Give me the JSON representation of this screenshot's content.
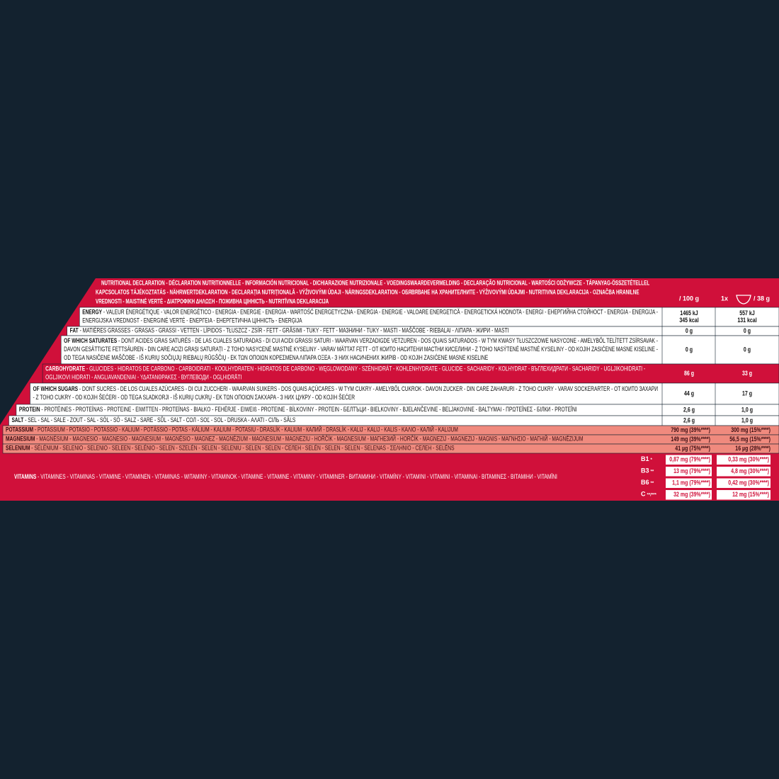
{
  "header": {
    "lines": [
      "NUTRITIONAL DECLARATION - DÉCLARATION NUTRITIONNELLE - INFORMACIÓN NUTRICIONAL - DICHIARAZIONE NUTRIZIONALE - VOEDINGSWAARDEVERMELDING - DECLARAÇÃO NUTRICIONAL - WARTOŚCI ODŻYWCZE - TÁPANYAG-ÖSSZETÉTELLEL",
      "KAPCSOLATOS TÁJÉKOZTATÁS - NÄHRWERTDEKLARATION - DECLARAȚIA NUTRIȚIONALĂ - VÝŽIVOVÝMI ÚDAJI - NÄRINGSDEKLARATION - ОБЯВЯВАНЕ НА ХРАНИТЕЛНИТЕ - VÝŽIVOVÝMI ÚDAJMI - NUTRITIVNA DEKLARACIJA - OZNAČBA HRANILNE",
      "VREDNOSTI - MAISTINĖ VERTĖ - ΔΙΑΤΡΟΦΙΚΗ ΔΗΛΩΣΗ - ПОЖИВНА ЦІННІСТЬ - NUTRITĪVNA DEKLARACIJA"
    ],
    "per100": "/ 100 g",
    "portion_count": "1x",
    "portion": "/ 38 g"
  },
  "rows": [
    {
      "background": "#ffffff",
      "text_color": "#111111",
      "name": "ENERGY",
      "lines": [
        "- VALEUR ÉNERGÉTIQUE - VALOR ENERGÉTICO - ENERGIA - ENERGIE - ENERGIA - WARTOŚĆ ENERGETYCZNA - ENERGIA - ENERGIE - VALOARE ENERGETICĂ - ENERGETICKÁ HODNOTA - ENERGI - ЕНЕРГИЙНА СТОЙНОСТ - ENERGIA - ENERGIJA -",
        "ENERGIJSKA VREDNOST - ENERGINĖ VERTĖ - ΕΝΕΡΓΕΙΑ - ЕНЕРГЕТИЧНА ЦІННІСТЬ - ENERĢIJA"
      ],
      "per100": [
        "1465 kJ",
        "345 kcal"
      ],
      "portion": [
        "557 kJ",
        "131 kcal"
      ]
    },
    {
      "background": "#ffffff",
      "text_color": "#111111",
      "name": "FAT",
      "lines": [
        "- MATIÈRES GRASSES - GRASAS - GRASSI - VETTEN - LÍPIDOS - TŁUSZCZ - ZSÍR - FETT - GRĂSIMI - TUKY - FETT - МАЗНИНИ - TUKY - MASTI - MAŠČOBE - RIEBALAI - ΛΙΠΑΡΑ - ЖИРИ - MASTI"
      ],
      "per100": [
        "0 g"
      ],
      "portion": [
        "0 g"
      ]
    },
    {
      "background": "#ffffff",
      "text_color": "#111111",
      "name": "OF WHICH SATURATES",
      "lines": [
        "- DONT ACIDES GRAS SATURÉS - DE LAS CUALES SATURADAS - DI CUI ACIDI GRASSI SATURI - WAARVAN VERZADIGDE VETZUREN - DOS QUAIS SATURADOS - W TYM KWASY TŁUSZCZOWE NASYCONE - AMELYBŐL TELÍTETT ZSÍRSAVAK -",
        "DAVON GESÄTTIGTE FETTSÄUREN - DIN CARE ACIZI GRAȘI SATURAȚI - Z TOHO NASYCENÉ MASTNÉ KYSELINY - VARAV MÄTTAT FETT - ОТ КОИТО НАСИТЕНИ МАСТНИ КИСЕЛИНИ - Z TOHO NASÝTENÉ MASTNÉ KYSELINY - OD KOJIH ZASIĆENE MASNE KISELINE -",
        "OD TEGA NASIČENE MAŠČOBE - IŠ KURIŲ SOČIŲJŲ RIEBALŲ RŪGŠČIŲ - ΕΚ ΤΩΝ ΟΠΟΙΩΝ ΚΟΡΕΣΜΕΝΑ ΛΙΠΑΡΑ ΟΞΕΑ - З НИХ НАСИЧЕНИХ ЖИРІВ - OD KOJIH ZASIĆENE MASNE KISELINE"
      ],
      "per100": [
        "0 g"
      ],
      "portion": [
        "0 g"
      ]
    },
    {
      "background": "#d0103a",
      "text_color": "#ffffff",
      "name": "CARBOHYDRATE",
      "lines": [
        "- GLUCIDES - HIDRATOS DE CARBONO - CARBOIDRATI - KOOLHYDRATEN - HIDRATOS DE CARBONO - WĘGLOWODANY - SZÉNHIDRÁT - KOHLENHYDRATE - GLUCIDE - SACHARIDY - KOLHYDRAT - ВЪГЛЕХИДРАТИ - SACHARIDY - UGLJIKOHIDRATI -",
        "OGLJIKOVI HIDRATI - ANGLIAVANDENIAI - ΥΔΑΤΑΝΘΡΑΚΕΣ - ВУГЛЕВОДИ - OGĻHIDRĀTI"
      ],
      "per100": [
        "86 g"
      ],
      "portion": [
        "33 g"
      ]
    },
    {
      "background": "#ffffff",
      "text_color": "#111111",
      "name": "OF WHICH SUGARS",
      "lines": [
        "- DONT SUCRES - DE LOS CUALES AZÚCARES - DI CUI ZUCCHERI - WAARVAN SUIKERS - DOS QUAIS AÇÚCARES - W TYM CUKRY - AMELYBŐL CUKROK - DAVON ZUCKER - DIN CARE ZAHARURI - Z TOHO CUKRY - VARAV SOCKERARTER - ОТ КОИТО ЗАХАРИ",
        "- Z TOHO CUKRY - OD KOJIH ŠEĆERI - OD TEGA SLADKORJI - IŠ KURIŲ CUKRŲ - ΕΚ ΤΩΝ ΟΠΟΙΩΝ ΣΑΚΧΑΡΑ - З НИХ ЦУКРУ - OD KOJIH ŠEĆER"
      ],
      "per100": [
        "44 g"
      ],
      "portion": [
        "17 g"
      ]
    },
    {
      "background": "#ffffff",
      "text_color": "#111111",
      "name": "PROTEIN",
      "lines": [
        "- PROTÉINES - PROTEÍNAS - PROTEINE - EIWITTEN - PROTEÍNAS - BIAŁKO - FEHÉRJE - EIWEIß - PROTEINE - BÍLKOVINY - PROTEIN - БЕЛТЪЦИ - BIELKOVINY - BJELANČEVINE - BELJAKOVINE - BALTYMAI - ΠΡΩΤΕΪΝΕΣ - БІЛКИ - PROTEĪNI"
      ],
      "per100": [
        "2,6 g"
      ],
      "portion": [
        "1,0 g"
      ]
    },
    {
      "background": "#ffffff",
      "text_color": "#111111",
      "name": "SALT",
      "lines": [
        "- SEL - SAL - SALE - ZOUT - SAL - SÓL - SÓ - SALZ - SARE - SŮL - SALT - СОЛ - SOĽ - SOL - DRUSKA - ΑΛΑΤΙ - СІЛЬ - SĀLS"
      ],
      "per100": [
        "2,6 g"
      ],
      "portion": [
        "1,0 g"
      ]
    },
    {
      "background": "#f08a7e",
      "text_color": "#3a0d12",
      "name": "POTASSIUM",
      "lines": [
        "- POTASSIUM - POTASIO - POTASSIO - KALIUM - POTÁSSIO - POTAS - KÁLIUM - KALIUM - POTASIU - DRASLÍK - KALIUM - КАЛИЙ - DRASLÍK - KALIJ - KALIJ - KALIS - ΚΑΛΙΟ - КАЛІЙ - KALIJUM"
      ],
      "per100": [
        "790 mg (39%****)"
      ],
      "portion": [
        "300 mg (15%****)"
      ]
    },
    {
      "background": "#f08a7e",
      "text_color": "#3a0d12",
      "name": "MAGNESIUM",
      "lines": [
        "- MAGNÉSIUM - MAGNESIO - MAGNESIO - MAGNESIUM - MAGNÉSIO - MAGNEZ - MAGNÉZIUM - MAGNESIUM - MAGNEZIU - HOŘČÍK - MAGNESIUM - МАГНЕЗИЙ - HORČÍK - MAGNEZIJ - MAGNEZIJ - MAGNIS - ΜΑΓΝΗΣΙΟ - МАГНІЙ - MAGNĒZIJUM"
      ],
      "per100": [
        "149 mg (39%****)"
      ],
      "portion": [
        "56,5 mg (15%****)"
      ]
    },
    {
      "background": "#f08a7e",
      "text_color": "#3a0d12",
      "name": "SELENIUM",
      "lines": [
        "- SÉLÉNIUM - SELENIO - SELENIO - SELEEN - SELÉNIO - SELEN - SZELÉN - SELEN - SELENIU - SELEN - SELEN - СЕЛЕН - SELÉN - SELEN - SELEN - SELENAS - ΣΕΛΗΝΙΟ - СЕЛЕН - SELĒNS"
      ],
      "per100": [
        "41 µg (75%****)"
      ],
      "portion": [
        "16 µg (28%****)"
      ]
    }
  ],
  "vitamins": {
    "name": "VITAMINS",
    "text": "- VITAMINES - VITAMINAS - VITAMINE - VITAMINEN - VITAMINAS - WITAMINY - VITAMINOK - VITAMINE - VITAMINE - VITAMINY - VITAMINER - ВИТАМИНИ - VITAMÍNY - VITAMINI - VITAMINI - VITAMINAI - ΒΙΤΑΜΙΝΕΣ - ВІТАМІНИ - VITAMĪNI",
    "items": [
      {
        "name": "B1",
        "note": "*",
        "per100": "0,87 mg (79%****)",
        "portion": "0,33 mg (30%****)"
      },
      {
        "name": "B3",
        "note": "**",
        "per100": "13 mg (79%****)",
        "portion": "4,8 mg (30%****)"
      },
      {
        "name": "B6",
        "note": "**",
        "per100": "1,1 mg (79%****)",
        "portion": "0,42 mg (30%****)"
      },
      {
        "name": "C",
        "note": "**/***",
        "per100": "32 mg (39%****)",
        "portion": "12 mg (15%****)"
      }
    ]
  }
}
